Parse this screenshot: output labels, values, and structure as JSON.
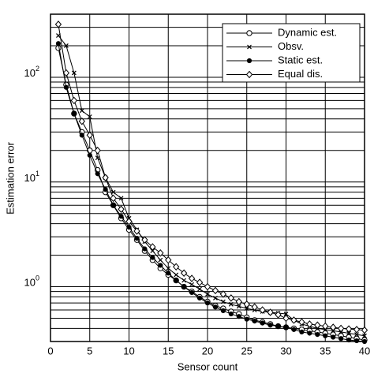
{
  "chart_data": {
    "type": "line",
    "log_y": true,
    "grid": true,
    "legend": "upper right",
    "xlabel": "Sensor count",
    "ylabel": "Estimation error",
    "xlim": [
      0,
      40
    ],
    "xticks": [
      0,
      5,
      10,
      15,
      20,
      25,
      30,
      35,
      40
    ],
    "ylim": [
      0.3,
      400
    ],
    "yticks": [
      {
        "value": 1,
        "label": "10^0"
      },
      {
        "value": 10,
        "label": "10^1"
      },
      {
        "value": 100,
        "label": "10^2"
      }
    ],
    "yminorticks": [
      0.3,
      0.4,
      0.5,
      0.6,
      0.7,
      0.8,
      0.9,
      2,
      3,
      4,
      5,
      6,
      7,
      8,
      9,
      20,
      30,
      40,
      50,
      60,
      70,
      80,
      90,
      200,
      300,
      400
    ],
    "x": [
      1,
      2,
      3,
      4,
      5,
      6,
      7,
      8,
      9,
      10,
      11,
      12,
      13,
      14,
      15,
      16,
      17,
      18,
      19,
      20,
      21,
      22,
      23,
      24,
      25,
      26,
      27,
      28,
      29,
      30,
      31,
      32,
      33,
      34,
      35,
      36,
      37,
      38,
      39,
      40
    ],
    "series": [
      {
        "name": "Dynamic est.",
        "color": "#000000",
        "marker": "circle",
        "values": [
          190,
          85,
          45,
          30,
          20,
          13,
          8,
          6,
          4.5,
          3.5,
          2.8,
          2.2,
          1.8,
          1.5,
          1.3,
          1.15,
          1.0,
          0.9,
          0.8,
          0.72,
          0.66,
          0.62,
          0.58,
          0.55,
          0.51,
          0.48,
          0.46,
          0.44,
          0.42,
          0.41,
          0.4,
          0.39,
          0.38,
          0.37,
          0.36,
          0.35,
          0.34,
          0.33,
          0.32,
          0.31
        ]
      },
      {
        "name": "Obsv.",
        "color": "#000000",
        "marker": "x",
        "values": [
          250,
          200,
          110,
          48,
          42,
          17,
          11,
          8,
          7,
          4.5,
          3.5,
          2.7,
          2.2,
          1.8,
          1.5,
          1.3,
          1.15,
          1.05,
          0.95,
          0.85,
          0.78,
          0.72,
          0.68,
          0.65,
          0.62,
          0.6,
          0.58,
          0.57,
          0.56,
          0.55,
          0.48,
          0.44,
          0.42,
          0.4,
          0.39,
          0.38,
          0.37,
          0.36,
          0.35,
          0.34
        ]
      },
      {
        "name": "Static est.",
        "color": "#000000",
        "marker": "dot",
        "values": [
          210,
          80,
          45,
          28,
          18,
          12,
          8.5,
          6,
          4.7,
          3.7,
          2.9,
          2.3,
          1.9,
          1.6,
          1.35,
          1.15,
          1.0,
          0.88,
          0.78,
          0.7,
          0.64,
          0.59,
          0.55,
          0.52,
          0.49,
          0.47,
          0.45,
          0.43,
          0.42,
          0.41,
          0.39,
          0.37,
          0.36,
          0.35,
          0.34,
          0.33,
          0.32,
          0.31,
          0.305,
          0.3
        ]
      },
      {
        "name": "Equal dis.",
        "color": "#000000",
        "marker": "diamond",
        "values": [
          320,
          110,
          60,
          38,
          28,
          20,
          11,
          7,
          5.5,
          4.2,
          3.4,
          2.8,
          2.4,
          2.1,
          1.8,
          1.55,
          1.35,
          1.2,
          1.1,
          1.0,
          0.92,
          0.85,
          0.78,
          0.72,
          0.68,
          0.64,
          0.6,
          0.57,
          0.54,
          0.5,
          0.48,
          0.46,
          0.44,
          0.43,
          0.42,
          0.41,
          0.4,
          0.395,
          0.39,
          0.385
        ]
      }
    ]
  }
}
